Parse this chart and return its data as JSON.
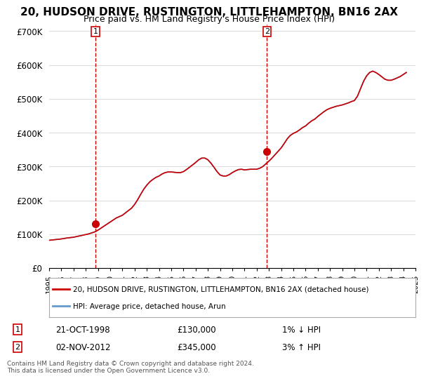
{
  "title": "20, HUDSON DRIVE, RUSTINGTON, LITTLEHAMPTON, BN16 2AX",
  "subtitle": "Price paid vs. HM Land Registry's House Price Index (HPI)",
  "legend_line1": "20, HUDSON DRIVE, RUSTINGTON, LITTLEHAMPTON, BN16 2AX (detached house)",
  "legend_line2": "HPI: Average price, detached house, Arun",
  "transaction1_label": "1",
  "transaction1_date": "21-OCT-1998",
  "transaction1_price": "£130,000",
  "transaction1_hpi": "1% ↓ HPI",
  "transaction2_label": "2",
  "transaction2_date": "02-NOV-2012",
  "transaction2_price": "£345,000",
  "transaction2_hpi": "3% ↑ HPI",
  "footnote": "Contains HM Land Registry data © Crown copyright and database right 2024.\nThis data is licensed under the Open Government Licence v3.0.",
  "house_color": "#cc0000",
  "hpi_color": "#6699cc",
  "background_color": "#ffffff",
  "grid_color": "#dddddd",
  "vline_color": "#cc0000",
  "ylim": [
    0,
    720000
  ],
  "yticks": [
    0,
    100000,
    200000,
    300000,
    400000,
    500000,
    600000,
    700000
  ],
  "ytick_labels": [
    "£0",
    "£100K",
    "£200K",
    "£300K",
    "£400K",
    "£500K",
    "£600K",
    "£700K"
  ],
  "marker1_x": 1998.8,
  "marker1_y": 130000,
  "marker2_x": 2012.84,
  "marker2_y": 345000,
  "vline1_x": 1998.8,
  "vline2_x": 2012.84,
  "hpi_years": [
    1995.0,
    1995.25,
    1995.5,
    1995.75,
    1996.0,
    1996.25,
    1996.5,
    1996.75,
    1997.0,
    1997.25,
    1997.5,
    1997.75,
    1998.0,
    1998.25,
    1998.5,
    1998.75,
    1999.0,
    1999.25,
    1999.5,
    1999.75,
    2000.0,
    2000.25,
    2000.5,
    2000.75,
    2001.0,
    2001.25,
    2001.5,
    2001.75,
    2002.0,
    2002.25,
    2002.5,
    2002.75,
    2003.0,
    2003.25,
    2003.5,
    2003.75,
    2004.0,
    2004.25,
    2004.5,
    2004.75,
    2005.0,
    2005.25,
    2005.5,
    2005.75,
    2006.0,
    2006.25,
    2006.5,
    2006.75,
    2007.0,
    2007.25,
    2007.5,
    2007.75,
    2008.0,
    2008.25,
    2008.5,
    2008.75,
    2009.0,
    2009.25,
    2009.5,
    2009.75,
    2010.0,
    2010.25,
    2010.5,
    2010.75,
    2011.0,
    2011.25,
    2011.5,
    2011.75,
    2012.0,
    2012.25,
    2012.5,
    2012.75,
    2013.0,
    2013.25,
    2013.5,
    2013.75,
    2014.0,
    2014.25,
    2014.5,
    2014.75,
    2015.0,
    2015.25,
    2015.5,
    2015.75,
    2016.0,
    2016.25,
    2016.5,
    2016.75,
    2017.0,
    2017.25,
    2017.5,
    2017.75,
    2018.0,
    2018.25,
    2018.5,
    2018.75,
    2019.0,
    2019.25,
    2019.5,
    2019.75,
    2020.0,
    2020.25,
    2020.5,
    2020.75,
    2021.0,
    2021.25,
    2021.5,
    2021.75,
    2022.0,
    2022.25,
    2022.5,
    2022.75,
    2023.0,
    2023.25,
    2023.5,
    2023.75,
    2024.0,
    2024.25
  ],
  "hpi_values": [
    82000,
    83000,
    84000,
    85000,
    86000,
    87500,
    89000,
    90000,
    91000,
    93000,
    95000,
    97000,
    99000,
    101000,
    104000,
    107000,
    112000,
    118000,
    124000,
    130000,
    136000,
    142000,
    148000,
    152000,
    156000,
    163000,
    170000,
    177000,
    188000,
    202000,
    218000,
    233000,
    245000,
    255000,
    262000,
    268000,
    272000,
    278000,
    282000,
    284000,
    284000,
    283000,
    282000,
    282000,
    285000,
    291000,
    298000,
    305000,
    312000,
    320000,
    325000,
    325000,
    320000,
    310000,
    298000,
    285000,
    275000,
    272000,
    272000,
    276000,
    282000,
    287000,
    291000,
    292000,
    290000,
    291000,
    292000,
    292000,
    292000,
    295000,
    300000,
    308000,
    316000,
    325000,
    335000,
    345000,
    355000,
    368000,
    382000,
    392000,
    398000,
    402000,
    408000,
    415000,
    420000,
    428000,
    435000,
    440000,
    448000,
    455000,
    462000,
    468000,
    472000,
    475000,
    478000,
    480000,
    482000,
    485000,
    488000,
    492000,
    495000,
    508000,
    530000,
    552000,
    568000,
    578000,
    582000,
    578000,
    572000,
    565000,
    558000,
    555000,
    555000,
    558000,
    562000,
    566000,
    572000,
    578000
  ],
  "house_years": [
    1995.0,
    1995.25,
    1995.5,
    1995.75,
    1996.0,
    1996.25,
    1996.5,
    1996.75,
    1997.0,
    1997.25,
    1997.5,
    1997.75,
    1998.0,
    1998.25,
    1998.5,
    1998.75,
    1999.0,
    1999.25,
    1999.5,
    1999.75,
    2000.0,
    2000.25,
    2000.5,
    2000.75,
    2001.0,
    2001.25,
    2001.5,
    2001.75,
    2002.0,
    2002.25,
    2002.5,
    2002.75,
    2003.0,
    2003.25,
    2003.5,
    2003.75,
    2004.0,
    2004.25,
    2004.5,
    2004.75,
    2005.0,
    2005.25,
    2005.5,
    2005.75,
    2006.0,
    2006.25,
    2006.5,
    2006.75,
    2007.0,
    2007.25,
    2007.5,
    2007.75,
    2008.0,
    2008.25,
    2008.5,
    2008.75,
    2009.0,
    2009.25,
    2009.5,
    2009.75,
    2010.0,
    2010.25,
    2010.5,
    2010.75,
    2011.0,
    2011.25,
    2011.5,
    2011.75,
    2012.0,
    2012.25,
    2012.5,
    2012.75,
    2013.0,
    2013.25,
    2013.5,
    2013.75,
    2014.0,
    2014.25,
    2014.5,
    2014.75,
    2015.0,
    2015.25,
    2015.5,
    2015.75,
    2016.0,
    2016.25,
    2016.5,
    2016.75,
    2017.0,
    2017.25,
    2017.5,
    2017.75,
    2018.0,
    2018.25,
    2018.5,
    2018.75,
    2019.0,
    2019.25,
    2019.5,
    2019.75,
    2020.0,
    2020.25,
    2020.5,
    2020.75,
    2021.0,
    2021.25,
    2021.5,
    2021.75,
    2022.0,
    2022.25,
    2022.5,
    2022.75,
    2023.0,
    2023.25,
    2023.5,
    2023.75,
    2024.0,
    2024.25
  ],
  "house_values": [
    82000,
    83000,
    84000,
    85000,
    86000,
    87500,
    89000,
    90000,
    91000,
    93000,
    95000,
    97000,
    99000,
    101000,
    104000,
    107000,
    112000,
    118000,
    124000,
    130000,
    136000,
    142000,
    148000,
    152000,
    156000,
    163000,
    170000,
    177000,
    188000,
    202000,
    218000,
    233000,
    245000,
    255000,
    262000,
    268000,
    272000,
    278000,
    282000,
    284000,
    284000,
    283000,
    282000,
    282000,
    285000,
    291000,
    298000,
    305000,
    312000,
    320000,
    325000,
    325000,
    320000,
    310000,
    298000,
    285000,
    275000,
    272000,
    272000,
    276000,
    282000,
    287000,
    291000,
    292000,
    290000,
    291000,
    292000,
    292000,
    292000,
    295000,
    300000,
    308000,
    316000,
    325000,
    335000,
    345000,
    355000,
    368000,
    382000,
    392000,
    398000,
    402000,
    408000,
    415000,
    420000,
    428000,
    435000,
    440000,
    448000,
    455000,
    462000,
    468000,
    472000,
    475000,
    478000,
    480000,
    482000,
    485000,
    488000,
    492000,
    495000,
    508000,
    530000,
    552000,
    568000,
    578000,
    582000,
    578000,
    572000,
    565000,
    558000,
    555000,
    555000,
    558000,
    562000,
    566000,
    572000,
    578000
  ],
  "xtick_years": [
    1995,
    1996,
    1997,
    1998,
    1999,
    2000,
    2001,
    2002,
    2003,
    2004,
    2005,
    2006,
    2007,
    2008,
    2009,
    2010,
    2011,
    2012,
    2013,
    2014,
    2015,
    2016,
    2017,
    2018,
    2019,
    2020,
    2021,
    2022,
    2023,
    2024,
    2025
  ]
}
